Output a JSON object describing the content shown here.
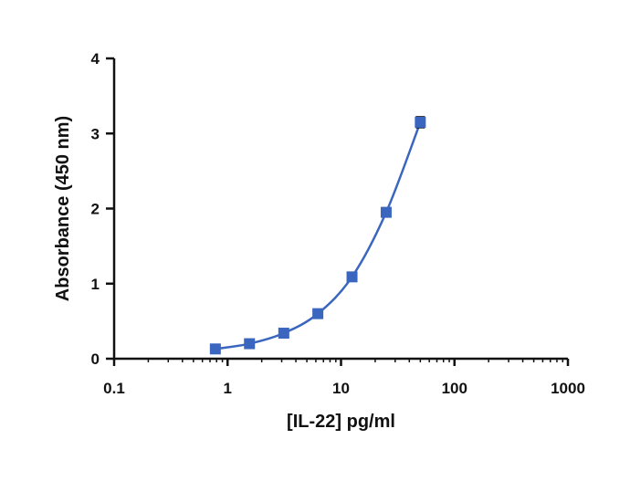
{
  "chart_data": {
    "type": "scatter",
    "title": "",
    "xlabel": "[IL-22] pg/ml",
    "ylabel": "Absorbance (450 nm)",
    "x_scale": "log",
    "xlim": [
      0.1,
      1000
    ],
    "ylim": [
      0,
      4
    ],
    "x_ticks": [
      "0.1",
      "1",
      "10",
      "100",
      "1000"
    ],
    "y_ticks": [
      "0",
      "1",
      "2",
      "3",
      "4"
    ],
    "grid": false,
    "legend": "none",
    "series": [
      {
        "x": [
          0.78,
          1.56,
          3.13,
          6.25,
          12.5,
          25,
          50
        ],
        "y": [
          0.13,
          0.2,
          0.34,
          0.6,
          1.09,
          1.95,
          3.15
        ],
        "error": [
          0.02,
          0.02,
          0.02,
          0.03,
          0.04,
          0.04,
          0.07
        ],
        "color": "#3a66bf",
        "fit_line": "4PL curve"
      }
    ]
  }
}
